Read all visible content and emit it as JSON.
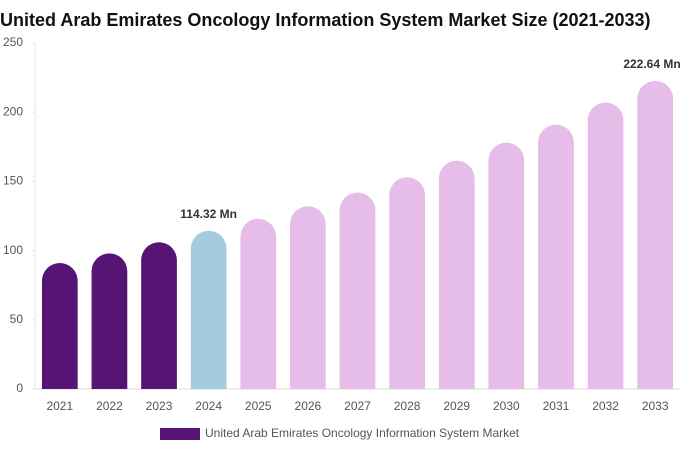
{
  "chart_data": {
    "type": "bar",
    "title": "United Arab Emirates Oncology Information System Market Size (2021-2033)",
    "categories": [
      "2021",
      "2022",
      "2023",
      "2024",
      "2025",
      "2026",
      "2027",
      "2028",
      "2029",
      "2030",
      "2031",
      "2032",
      "2033"
    ],
    "series": [
      {
        "name": "United Arab Emirates Oncology Information System Market",
        "color": "#561475",
        "colors": [
          "#561475",
          "#561475",
          "#561475",
          "#a4cbde",
          "#e6bde8",
          "#e6bde8",
          "#e6bde8",
          "#e6bde8",
          "#e6bde8",
          "#e6bde8",
          "#e6bde8",
          "#e6bde8",
          "#e6bde8"
        ],
        "values": [
          91,
          98,
          106,
          114.32,
          123,
          132,
          142,
          153,
          165,
          178,
          191,
          207,
          222.64
        ],
        "value_labels": [
          null,
          null,
          null,
          "114.32 Mn",
          null,
          null,
          null,
          null,
          null,
          null,
          null,
          null,
          "222.64 Mn"
        ]
      }
    ],
    "ylim": [
      0,
      250
    ],
    "yticks": [
      0,
      50,
      100,
      150,
      200,
      250
    ],
    "grid": false
  }
}
